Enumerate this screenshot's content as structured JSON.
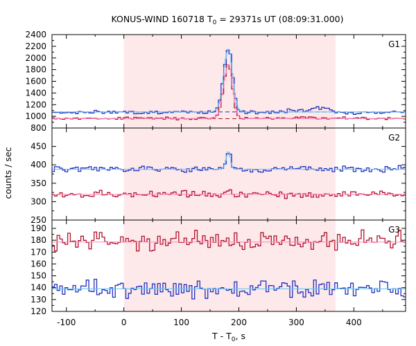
{
  "chart_data": {
    "type": "line",
    "title": {
      "prefix": "KONUS-WIND 160718 T",
      "sub": "0",
      "suffix": " = 29371s UT (08:09:31.000)"
    },
    "xlabel": {
      "prefix": "T - T",
      "sub": "0",
      "suffix": ", s"
    },
    "ylabel": "counts / sec",
    "xlim": [
      -125,
      490
    ],
    "xticks": [
      -100,
      0,
      100,
      200,
      300,
      400
    ],
    "highlight_region": {
      "x": [
        0,
        368
      ],
      "color": "#fde8ea"
    },
    "grid": false,
    "colors": {
      "data_blue": "#1f2fbf",
      "data_red": "#b0102a",
      "model_blue": "#6ec6f0",
      "model_red": "#ff8fc0",
      "background_blue": "#1f2fbf",
      "background_red": "#b0102a"
    },
    "panels": [
      {
        "label": "G1",
        "ylim": [
          800,
          2400
        ],
        "yticks": [
          800,
          1000,
          1200,
          1400,
          1600,
          1800,
          2000,
          2200,
          2400
        ],
        "background_levels": {
          "blue": 1075,
          "red": 960
        },
        "peak": {
          "x": 182,
          "blue_peak": 2170,
          "red_peak": 1890
        },
        "series": [
          {
            "role": "data",
            "color": "blue",
            "base": 1070,
            "noise": 18,
            "peak_amp": 1090,
            "rise": 12,
            "decay": 10,
            "seed": 1,
            "bumps": [
              {
                "x": 340,
                "amp": 80,
                "w": 18
              },
              {
                "x": 300,
                "amp": 40,
                "w": 25
              }
            ]
          },
          {
            "role": "data",
            "color": "red",
            "base": 965,
            "noise": 12,
            "peak_amp": 930,
            "rise": 12,
            "decay": 10,
            "seed": 2,
            "bumps": [
              {
                "x": 320,
                "amp": 20,
                "w": 20
              }
            ]
          },
          {
            "role": "model",
            "color": "blue",
            "base": 1075,
            "peak_amp": 1080,
            "rise": 12,
            "decay": 10
          },
          {
            "role": "model",
            "color": "red",
            "base": 962,
            "peak_amp": 920,
            "rise": 12,
            "decay": 10
          }
        ]
      },
      {
        "label": "G2",
        "ylim": [
          250,
          500
        ],
        "yticks": [
          250,
          300,
          350,
          400,
          450
        ],
        "series": [
          {
            "role": "data",
            "color": "blue",
            "base": 388,
            "noise": 5,
            "peak_amp": 50,
            "rise": 6,
            "decay": 5,
            "seed": 3,
            "bumps": []
          },
          {
            "role": "data",
            "color": "red",
            "base": 320,
            "noise": 6,
            "peak_amp": 0,
            "seed": 4,
            "bumps": []
          },
          {
            "role": "model",
            "color": "blue",
            "base": 388,
            "peak_amp": 48,
            "rise": 6,
            "decay": 5
          },
          {
            "role": "model",
            "color": "red",
            "base": 320,
            "peak_amp": 0
          }
        ]
      },
      {
        "label": "G3",
        "ylim": [
          120,
          197
        ],
        "yticks": [
          120,
          130,
          140,
          150,
          160,
          170,
          180,
          190
        ],
        "series": [
          {
            "role": "data",
            "color": "red",
            "base": 179,
            "noise": 4.5,
            "peak_amp": 0,
            "seed": 5,
            "bumps": []
          },
          {
            "role": "data",
            "color": "blue",
            "base": 139,
            "noise": 4.5,
            "peak_amp": 0,
            "seed": 6,
            "bumps": []
          },
          {
            "role": "model",
            "color": "red",
            "base": 178.5,
            "peak_amp": 0
          },
          {
            "role": "model",
            "color": "blue",
            "base": 139,
            "peak_amp": 0
          }
        ]
      }
    ]
  }
}
